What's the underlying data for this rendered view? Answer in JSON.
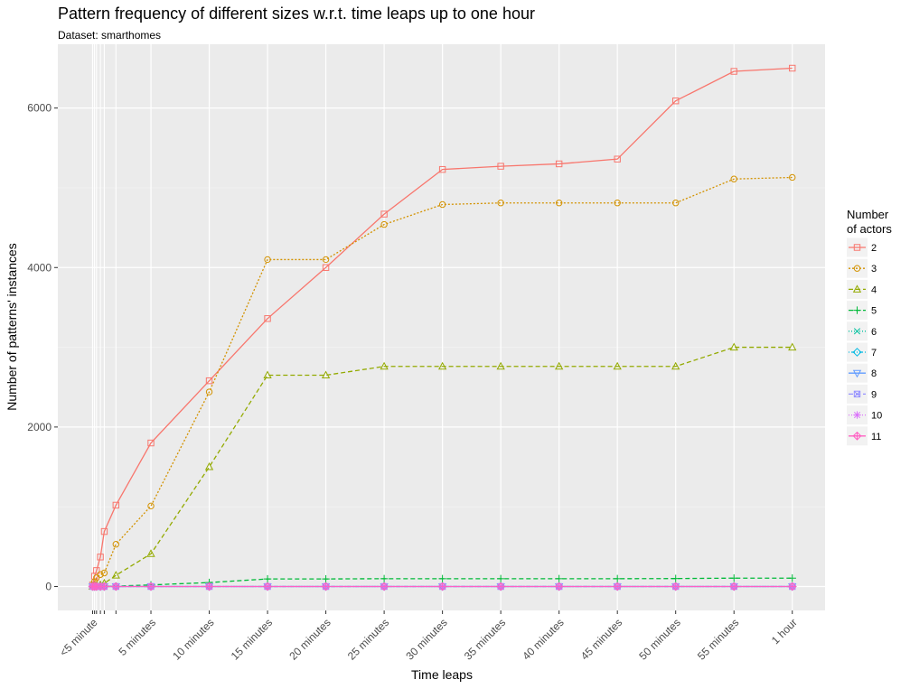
{
  "chart_data": {
    "type": "line",
    "title": "Pattern frequency of different sizes w.r.t. time leaps up to one hour",
    "subtitle": "Dataset: smarthomes",
    "xlabel": "Time leaps",
    "ylabel": "Number of patterns' instances",
    "ylim": [
      -300,
      6800
    ],
    "yticks": [
      0,
      2000,
      4000,
      6000
    ],
    "xlim": [
      -0.45,
      12.45
    ],
    "categories": [
      "<5 minute",
      "5 minutes",
      "10 minutes",
      "15 minutes",
      "20 minutes",
      "25 minutes",
      "30 minutes",
      "35 minutes",
      "40 minutes",
      "45 minutes",
      "50 minutes",
      "55 minutes",
      "1 hour"
    ],
    "minor_x": [
      0.0,
      0.033,
      0.067,
      0.133,
      0.2,
      0.4
    ],
    "grid": true,
    "legend_title": [
      "Number",
      "of actors"
    ],
    "legend_position": "right",
    "series": [
      {
        "name": "2",
        "color": "#F8766D",
        "dash": "solid",
        "shape": "square",
        "x": [
          0,
          0.033,
          0.067,
          0.133,
          0.2,
          0.4,
          1,
          2,
          3,
          4,
          5,
          6,
          7,
          8,
          9,
          10,
          11,
          12
        ],
        "values": [
          20,
          130,
          200,
          370,
          690,
          1020,
          1800,
          2580,
          3360,
          4000,
          4670,
          5230,
          5270,
          5300,
          5360,
          6090,
          6460,
          6500
        ]
      },
      {
        "name": "3",
        "color": "#D39200",
        "dash": "short",
        "shape": "circle",
        "x": [
          0,
          0.033,
          0.067,
          0.133,
          0.2,
          0.4,
          1,
          2,
          3,
          4,
          5,
          6,
          7,
          8,
          9,
          10,
          11,
          12
        ],
        "values": [
          10,
          60,
          110,
          150,
          170,
          530,
          1010,
          2440,
          4100,
          4100,
          4540,
          4790,
          4810,
          4810,
          4810,
          4810,
          5110,
          5130
        ]
      },
      {
        "name": "4",
        "color": "#93AA00",
        "dash": "long",
        "shape": "triangle",
        "x": [
          0,
          0.033,
          0.067,
          0.133,
          0.2,
          0.4,
          1,
          2,
          3,
          4,
          5,
          6,
          7,
          8,
          9,
          10,
          11,
          12
        ],
        "values": [
          0,
          5,
          10,
          20,
          40,
          140,
          410,
          1500,
          2650,
          2650,
          2760,
          2760,
          2760,
          2760,
          2760,
          2760,
          3000,
          3000
        ]
      },
      {
        "name": "5",
        "color": "#00BA38",
        "dash": "long",
        "shape": "plus",
        "x": [
          0,
          0.033,
          0.067,
          0.133,
          0.2,
          0.4,
          1,
          2,
          3,
          4,
          5,
          6,
          7,
          8,
          9,
          10,
          11,
          12
        ],
        "values": [
          0,
          0,
          0,
          0,
          2,
          5,
          20,
          50,
          95,
          95,
          98,
          98,
          98,
          98,
          98,
          100,
          105,
          105
        ]
      },
      {
        "name": "6",
        "color": "#00C19F",
        "dash": "dot",
        "shape": "cross",
        "x": [
          0,
          0.033,
          0.067,
          0.133,
          0.2,
          0.4,
          1,
          2,
          3,
          4,
          5,
          6,
          7,
          8,
          9,
          10,
          11,
          12
        ],
        "values": [
          0,
          0,
          0,
          0,
          0,
          0,
          0,
          0,
          0,
          0,
          0,
          0,
          0,
          0,
          0,
          0,
          0,
          0
        ]
      },
      {
        "name": "7",
        "color": "#00B9E3",
        "dash": "dotdash",
        "shape": "diamond",
        "x": [
          0,
          0.033,
          0.067,
          0.133,
          0.2,
          0.4,
          1,
          2,
          3,
          4,
          5,
          6,
          7,
          8,
          9,
          10,
          11,
          12
        ],
        "values": [
          0,
          0,
          0,
          0,
          0,
          0,
          0,
          0,
          0,
          0,
          0,
          0,
          0,
          0,
          0,
          0,
          0,
          0
        ]
      },
      {
        "name": "8",
        "color": "#619CFF",
        "dash": "solid",
        "shape": "triangle-down",
        "x": [
          0,
          0.033,
          0.067,
          0.133,
          0.2,
          0.4,
          1,
          2,
          3,
          4,
          5,
          6,
          7,
          8,
          9,
          10,
          11,
          12
        ],
        "values": [
          0,
          0,
          0,
          0,
          0,
          0,
          0,
          0,
          0,
          0,
          0,
          0,
          0,
          0,
          0,
          0,
          0,
          0
        ]
      },
      {
        "name": "9",
        "color": "#9590FF",
        "dash": "long",
        "shape": "square-cross",
        "x": [
          0,
          0.033,
          0.067,
          0.133,
          0.2,
          0.4,
          1,
          2,
          3,
          4,
          5,
          6,
          7,
          8,
          9,
          10,
          11,
          12
        ],
        "values": [
          0,
          0,
          0,
          0,
          0,
          0,
          0,
          0,
          0,
          0,
          0,
          0,
          0,
          0,
          0,
          0,
          0,
          0
        ]
      },
      {
        "name": "10",
        "color": "#DB72FB",
        "dash": "dot",
        "shape": "star",
        "x": [
          0,
          0.033,
          0.067,
          0.133,
          0.2,
          0.4,
          1,
          2,
          3,
          4,
          5,
          6,
          7,
          8,
          9,
          10,
          11,
          12
        ],
        "values": [
          0,
          0,
          0,
          0,
          0,
          0,
          0,
          0,
          0,
          0,
          0,
          0,
          0,
          0,
          0,
          0,
          0,
          0
        ]
      },
      {
        "name": "11",
        "color": "#FF61C3",
        "dash": "solid",
        "shape": "diamond-plus",
        "x": [
          0,
          0.033,
          0.067,
          0.133,
          0.2,
          0.4,
          1,
          2,
          3,
          4,
          5,
          6,
          7,
          8,
          9,
          10,
          11,
          12
        ],
        "values": [
          0,
          0,
          0,
          0,
          0,
          0,
          0,
          0,
          0,
          0,
          0,
          0,
          0,
          0,
          0,
          0,
          0,
          0
        ]
      }
    ]
  }
}
